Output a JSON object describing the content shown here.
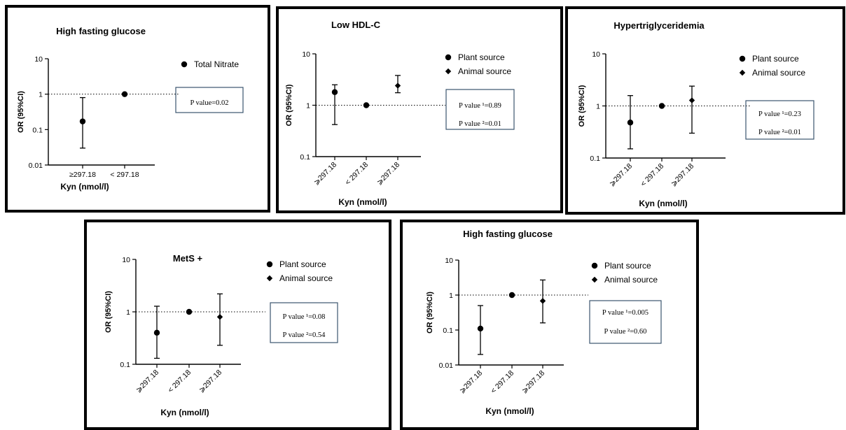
{
  "chart_data": [
    {
      "type": "scatter",
      "title": "High fasting glucose",
      "xlabel": "Kyn (nmol/l)",
      "ylabel": "OR (95%CI)",
      "yscale": "log",
      "ylim": [
        0.01,
        10
      ],
      "yticks": [
        "10",
        "1",
        "0.1",
        "0.01"
      ],
      "categories": [
        "≥297.18",
        "< 297.18"
      ],
      "reference_line": 1,
      "legend": [
        {
          "name": "Total Nitrate",
          "marker": "circle"
        }
      ],
      "pvalues": [
        "P value=0.02"
      ],
      "series": [
        {
          "name": "Total Nitrate",
          "marker": "circle",
          "points": [
            {
              "category": "≥297.18",
              "or": 0.17,
              "low": 0.03,
              "high": 0.8
            },
            {
              "category": "< 297.18",
              "or": 1
            }
          ]
        }
      ]
    },
    {
      "type": "scatter",
      "title": "Low HDL-C",
      "xlabel": "Kyn (nmol/l)",
      "ylabel": "OR (95%CI)",
      "yscale": "log",
      "ylim": [
        0.1,
        10
      ],
      "yticks": [
        "10",
        "1",
        "0.1"
      ],
      "categories": [
        "⩾297.18",
        "< 297.18",
        "⩾297.18"
      ],
      "reference_line": 1,
      "legend": [
        {
          "name": "Plant source",
          "marker": "circle"
        },
        {
          "name": "Animal source",
          "marker": "diamond"
        }
      ],
      "pvalues": [
        "P value ¹=0.89",
        "P value ²=0.01"
      ],
      "series": [
        {
          "name": "Plant source",
          "marker": "circle",
          "points": [
            {
              "category": "⩾297.18",
              "or": 1.8,
              "low": 0.42,
              "high": 2.5
            },
            {
              "category": "< 297.18",
              "or": 1
            }
          ]
        },
        {
          "name": "Animal source",
          "marker": "diamond",
          "points": [
            {
              "category": "⩾297.18 (2)",
              "or": 2.4,
              "low": 1.75,
              "high": 3.8
            }
          ]
        }
      ]
    },
    {
      "type": "scatter",
      "title": "Hypertriglyceridemia",
      "xlabel": "Kyn (nmol/l)",
      "ylabel": "OR (95%CI)",
      "yscale": "log",
      "ylim": [
        0.1,
        10
      ],
      "yticks": [
        "10",
        "1",
        "0.1"
      ],
      "categories": [
        "⩾297.18",
        "< 297.18",
        "⩾297.18"
      ],
      "reference_line": 1,
      "legend": [
        {
          "name": "Plant source",
          "marker": "circle"
        },
        {
          "name": "Animal source",
          "marker": "diamond"
        }
      ],
      "pvalues": [
        "P value ¹=0.23",
        "P value ²=0.01"
      ],
      "series": [
        {
          "name": "Plant source",
          "marker": "circle",
          "points": [
            {
              "category": "⩾297.18",
              "or": 0.48,
              "low": 0.15,
              "high": 1.58
            },
            {
              "category": "< 297.18",
              "or": 1
            }
          ]
        },
        {
          "name": "Animal source",
          "marker": "diamond",
          "points": [
            {
              "category": "⩾297.18 (2)",
              "or": 1.28,
              "low": 0.3,
              "high": 2.4
            }
          ]
        }
      ]
    },
    {
      "type": "scatter",
      "title": "MetS +",
      "xlabel": "Kyn (nmol/l)",
      "ylabel": "OR (95%CI)",
      "yscale": "log",
      "ylim": [
        0.1,
        10
      ],
      "yticks": [
        "10",
        "1",
        "0.1"
      ],
      "categories": [
        "⩾297.18",
        "< 297.18",
        "⩾297.18"
      ],
      "reference_line": 1,
      "legend": [
        {
          "name": "Plant source",
          "marker": "circle"
        },
        {
          "name": "Animal source",
          "marker": "diamond"
        }
      ],
      "pvalues": [
        "P value ¹=0.08",
        "P value ²=0.54"
      ],
      "series": [
        {
          "name": "Plant source",
          "marker": "circle",
          "points": [
            {
              "category": "⩾297.18",
              "or": 0.4,
              "low": 0.13,
              "high": 1.28
            },
            {
              "category": "< 297.18",
              "or": 1
            }
          ]
        },
        {
          "name": "Animal source",
          "marker": "diamond",
          "points": [
            {
              "category": "⩾297.18 (2)",
              "or": 0.8,
              "low": 0.23,
              "high": 2.2
            }
          ]
        }
      ]
    },
    {
      "type": "scatter",
      "title": "High fasting glucose",
      "xlabel": "Kyn (nmol/l)",
      "ylabel": "OR (95%CI)",
      "yscale": "log",
      "ylim": [
        0.01,
        10
      ],
      "yticks": [
        "10",
        "1",
        "0.1",
        "0.01"
      ],
      "categories": [
        "⩾297.18",
        "< 297.18",
        "⩾297.18"
      ],
      "reference_line": 1,
      "legend": [
        {
          "name": "Plant source",
          "marker": "circle"
        },
        {
          "name": "Animal source",
          "marker": "diamond"
        }
      ],
      "pvalues": [
        "P value ¹=0.005",
        "P value ²=0.60"
      ],
      "series": [
        {
          "name": "Plant source",
          "marker": "circle",
          "points": [
            {
              "category": "⩾297.18",
              "or": 0.11,
              "low": 0.02,
              "high": 0.5
            },
            {
              "category": "< 297.18",
              "or": 1
            }
          ]
        },
        {
          "name": "Animal source",
          "marker": "diamond",
          "points": [
            {
              "category": "⩾297.18 (2)",
              "or": 0.68,
              "low": 0.16,
              "high": 2.7
            }
          ]
        }
      ]
    }
  ]
}
